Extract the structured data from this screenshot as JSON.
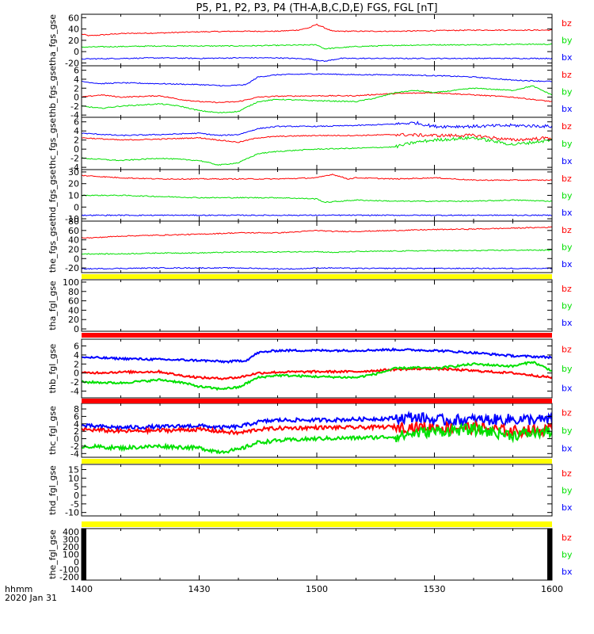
{
  "title": "P5, P1, P2, P3, P4 (TH-A,B,C,D,E) FGS, FGL [nT]",
  "colors": {
    "bx": "#0000ff",
    "by": "#00e000",
    "bz": "#ff0000",
    "flag": "#ffff00",
    "flag_red": "#ff0000"
  },
  "x_axis": {
    "label_line1": "hhmm",
    "label_line2": "2020 Jan 31",
    "range": [
      0,
      120
    ],
    "ticks": [
      {
        "value": 0,
        "label": "1400"
      },
      {
        "value": 30,
        "label": "1430"
      },
      {
        "value": 60,
        "label": "1500"
      },
      {
        "value": 90,
        "label": "1530"
      },
      {
        "value": 120,
        "label": "1600"
      }
    ]
  },
  "chart_data": [
    {
      "type": "line",
      "ylabel": "tha_fgs_gse",
      "ylim": [
        -25,
        66
      ],
      "yticks": [
        -20,
        0,
        20,
        40,
        60
      ],
      "legend": [
        "bz",
        "by",
        "bx"
      ],
      "series": [
        {
          "name": "bz",
          "x": [
            0,
            2,
            10,
            20,
            30,
            40,
            50,
            55,
            58,
            60,
            64,
            70,
            80,
            90,
            100,
            110,
            120
          ],
          "y": [
            31,
            28,
            32,
            33,
            35,
            36,
            36,
            38,
            42,
            48,
            36,
            36,
            36,
            37,
            38,
            38,
            38
          ]
        },
        {
          "name": "by",
          "x": [
            0,
            10,
            20,
            30,
            40,
            50,
            60,
            62,
            70,
            80,
            90,
            100,
            110,
            120
          ],
          "y": [
            8,
            9,
            10,
            10,
            10,
            11,
            12,
            5,
            9,
            11,
            12,
            12,
            13,
            13
          ]
        },
        {
          "name": "bx",
          "x": [
            0,
            10,
            20,
            30,
            40,
            50,
            58,
            62,
            66,
            80,
            100,
            120
          ],
          "y": [
            -13,
            -12,
            -11,
            -12,
            -11,
            -11,
            -13,
            -17,
            -12,
            -12,
            -12,
            -12
          ]
        }
      ]
    },
    {
      "type": "line",
      "ylabel": "thb_fgs_gse",
      "ylim": [
        -4.5,
        7
      ],
      "yticks": [
        -4,
        -2,
        0,
        2,
        4,
        6
      ],
      "legend": [
        "bz",
        "by",
        "bx"
      ],
      "series": [
        {
          "name": "bx",
          "x": [
            0,
            5,
            10,
            20,
            30,
            37,
            42,
            45,
            50,
            60,
            70,
            80,
            90,
            100,
            110,
            120
          ],
          "y": [
            3.5,
            3.0,
            3.2,
            3.0,
            2.8,
            2.5,
            2.8,
            4.5,
            5.0,
            5.2,
            5.0,
            5.0,
            4.8,
            4.5,
            3.8,
            3.5
          ]
        },
        {
          "name": "bz",
          "x": [
            0,
            5,
            10,
            20,
            25,
            30,
            35,
            40,
            45,
            50,
            60,
            70,
            75,
            80,
            90,
            100,
            110,
            115,
            120
          ],
          "y": [
            0,
            0.5,
            0,
            0.3,
            -0.5,
            -1.0,
            -1.2,
            -1.0,
            0,
            0.2,
            0.3,
            0.3,
            0.6,
            0.8,
            1.0,
            0.5,
            0,
            -0.5,
            -1.0
          ]
        },
        {
          "name": "by",
          "x": [
            0,
            5,
            10,
            20,
            25,
            30,
            35,
            40,
            45,
            50,
            60,
            70,
            75,
            80,
            85,
            90,
            100,
            110,
            115,
            120
          ],
          "y": [
            -2.0,
            -2.5,
            -2.0,
            -1.5,
            -2.0,
            -3.0,
            -3.5,
            -3.2,
            -1.0,
            -0.5,
            -0.8,
            -1.0,
            -0.2,
            1.0,
            1.5,
            1.0,
            2.0,
            1.5,
            2.5,
            0.5
          ]
        }
      ]
    },
    {
      "type": "line",
      "ylabel": "thc_fgs_gse",
      "ylim": [
        -4.5,
        7
      ],
      "yticks": [
        -4,
        -2,
        0,
        2,
        4,
        6
      ],
      "legend": [
        "bz",
        "by",
        "bx"
      ],
      "series": [
        {
          "name": "bx",
          "x": [
            0,
            10,
            20,
            30,
            35,
            40,
            45,
            50,
            60,
            70,
            80,
            85,
            90,
            100,
            110,
            120
          ],
          "y": [
            3.5,
            3.0,
            3.2,
            3.5,
            3.0,
            3.2,
            4.5,
            5.0,
            5.0,
            5.2,
            5.5,
            5.8,
            5.0,
            5.0,
            5.2,
            5.0
          ]
        },
        {
          "name": "bz",
          "x": [
            0,
            10,
            20,
            30,
            35,
            40,
            45,
            50,
            60,
            70,
            80,
            90,
            100,
            110,
            120
          ],
          "y": [
            2.5,
            2.0,
            2.2,
            2.5,
            2.0,
            1.5,
            2.5,
            2.8,
            3.0,
            3.0,
            3.2,
            3.0,
            3.0,
            2.0,
            2.5
          ]
        },
        {
          "name": "by",
          "x": [
            0,
            10,
            20,
            30,
            35,
            40,
            45,
            50,
            60,
            70,
            80,
            85,
            90,
            100,
            110,
            120
          ],
          "y": [
            -2.0,
            -2.5,
            -2.0,
            -2.5,
            -3.5,
            -3.0,
            -1.0,
            -0.5,
            0,
            0.2,
            0.5,
            1.5,
            2.0,
            2.5,
            1.0,
            2.0
          ]
        }
      ]
    },
    {
      "type": "line",
      "ylabel": "thd_fgs_gse",
      "ylim": [
        -12,
        32
      ],
      "yticks": [
        -10,
        0,
        10,
        20,
        30
      ],
      "legend": [
        "bz",
        "by",
        "bx"
      ],
      "series": [
        {
          "name": "bz",
          "x": [
            0,
            10,
            20,
            30,
            40,
            50,
            60,
            64,
            68,
            70,
            80,
            90,
            100,
            110,
            120
          ],
          "y": [
            27,
            25,
            24,
            24,
            24,
            24,
            25,
            28,
            24,
            25,
            24,
            25,
            23,
            23,
            23
          ]
        },
        {
          "name": "by",
          "x": [
            0,
            10,
            20,
            30,
            40,
            50,
            60,
            62,
            70,
            80,
            90,
            100,
            110,
            120
          ],
          "y": [
            10,
            10,
            9,
            8,
            8,
            8,
            7,
            4,
            6,
            5,
            5,
            5,
            6,
            5
          ]
        },
        {
          "name": "bx",
          "x": [
            0,
            20,
            40,
            60,
            80,
            100,
            120
          ],
          "y": [
            -7,
            -7,
            -7,
            -7,
            -7,
            -7,
            -7
          ]
        }
      ]
    },
    {
      "type": "line",
      "ylabel": "the_fgs_gse",
      "ylim": [
        -30,
        80
      ],
      "yticks": [
        -20,
        0,
        20,
        40,
        60,
        80
      ],
      "legend": [
        "bz",
        "by",
        "bx"
      ],
      "series": [
        {
          "name": "bz",
          "x": [
            0,
            2,
            10,
            20,
            30,
            40,
            50,
            55,
            60,
            64,
            70,
            80,
            90,
            100,
            110,
            120
          ],
          "y": [
            45,
            44,
            48,
            50,
            52,
            55,
            55,
            57,
            60,
            58,
            58,
            60,
            62,
            63,
            65,
            67
          ]
        },
        {
          "name": "by",
          "x": [
            0,
            10,
            20,
            30,
            40,
            50,
            60,
            64,
            70,
            80,
            90,
            100,
            110,
            120
          ],
          "y": [
            10,
            10,
            12,
            12,
            14,
            14,
            15,
            13,
            15,
            16,
            17,
            17,
            18,
            18
          ]
        },
        {
          "name": "bx",
          "x": [
            0,
            20,
            40,
            50,
            55,
            60,
            64,
            70,
            80,
            100,
            120
          ],
          "y": [
            -22,
            -20,
            -20,
            -22,
            -22,
            -20,
            -20,
            -21,
            -21,
            -21,
            -21
          ]
        }
      ]
    },
    {
      "type": "line",
      "ylabel": "tha_fgl_gse",
      "ylim": [
        -5,
        105
      ],
      "yticks": [
        0,
        20,
        40,
        60,
        80,
        100
      ],
      "legend": [
        "bz",
        "by",
        "bx"
      ],
      "series": []
    },
    {
      "type": "line",
      "ylabel": "thb_fgl_gse",
      "ylim": [
        -5.5,
        7.5
      ],
      "yticks": [
        -4,
        -2,
        0,
        2,
        4,
        6
      ],
      "legend": [
        "bz",
        "by",
        "bx"
      ],
      "series": [
        {
          "name": "bx",
          "x": [
            0,
            10,
            20,
            30,
            37,
            42,
            45,
            50,
            60,
            70,
            80,
            90,
            100,
            110,
            120
          ],
          "y": [
            3.5,
            3.2,
            3.0,
            2.8,
            2.5,
            2.8,
            4.5,
            5.0,
            5.0,
            5.0,
            5.2,
            5.0,
            4.5,
            3.8,
            3.5
          ]
        },
        {
          "name": "bz",
          "x": [
            0,
            10,
            20,
            25,
            30,
            35,
            40,
            45,
            50,
            60,
            70,
            80,
            90,
            100,
            110,
            115,
            120
          ],
          "y": [
            0,
            0.2,
            0.3,
            -0.5,
            -1.0,
            -1.2,
            -1.0,
            0,
            0.2,
            0.3,
            0.3,
            0.8,
            1.0,
            0.5,
            0,
            -0.5,
            -1.0
          ]
        },
        {
          "name": "by",
          "x": [
            0,
            10,
            20,
            25,
            30,
            35,
            40,
            45,
            50,
            60,
            70,
            75,
            80,
            85,
            90,
            100,
            110,
            115,
            120
          ],
          "y": [
            -2.0,
            -2.2,
            -1.5,
            -2.0,
            -3.0,
            -3.5,
            -3.2,
            -1.0,
            -0.5,
            -0.8,
            -1.0,
            -0.2,
            1.0,
            1.2,
            1.0,
            2.0,
            1.5,
            2.5,
            0.5
          ]
        }
      ]
    },
    {
      "type": "line",
      "ylabel": "thc_fgl_gse",
      "ylim": [
        -5,
        9.5
      ],
      "yticks": [
        -4,
        -2,
        0,
        2,
        4,
        6,
        8
      ],
      "legend": [
        "bz",
        "by",
        "bx"
      ],
      "series": [
        {
          "name": "bx",
          "x": [
            0,
            10,
            20,
            30,
            35,
            40,
            45,
            50,
            60,
            70,
            80,
            85,
            90,
            100,
            110,
            120
          ],
          "y": [
            3.5,
            3.0,
            3.2,
            3.5,
            3.0,
            3.2,
            4.5,
            5.0,
            5.0,
            5.2,
            5.5,
            5.8,
            5.0,
            5.0,
            5.2,
            5.0
          ]
        },
        {
          "name": "bz",
          "x": [
            0,
            10,
            20,
            30,
            35,
            40,
            45,
            50,
            60,
            70,
            80,
            90,
            100,
            110,
            120
          ],
          "y": [
            2.5,
            2.0,
            2.2,
            2.5,
            2.0,
            1.5,
            2.5,
            2.8,
            3.0,
            3.0,
            3.2,
            3.0,
            3.0,
            2.0,
            2.5
          ]
        },
        {
          "name": "by",
          "x": [
            0,
            10,
            20,
            30,
            35,
            40,
            45,
            50,
            60,
            70,
            80,
            85,
            90,
            100,
            110,
            120
          ],
          "y": [
            -2.0,
            -2.5,
            -2.0,
            -2.5,
            -3.5,
            -3.0,
            -1.0,
            -0.5,
            0,
            0.2,
            0.5,
            1.5,
            2.0,
            2.5,
            1.0,
            2.0
          ]
        }
      ]
    },
    {
      "type": "line",
      "ylabel": "thd_fgl_gse",
      "ylim": [
        -12,
        18
      ],
      "yticks": [
        -10,
        -5,
        0,
        5,
        10,
        15
      ],
      "legend": [
        "bz",
        "by",
        "bx"
      ],
      "series": []
    },
    {
      "type": "line",
      "ylabel": "the_fgl_gse",
      "ylim": [
        -240,
        440
      ],
      "yticks": [
        -200,
        -100,
        0,
        100,
        200,
        300,
        400
      ],
      "legend": [
        "bz",
        "by",
        "bx"
      ],
      "series": []
    }
  ]
}
